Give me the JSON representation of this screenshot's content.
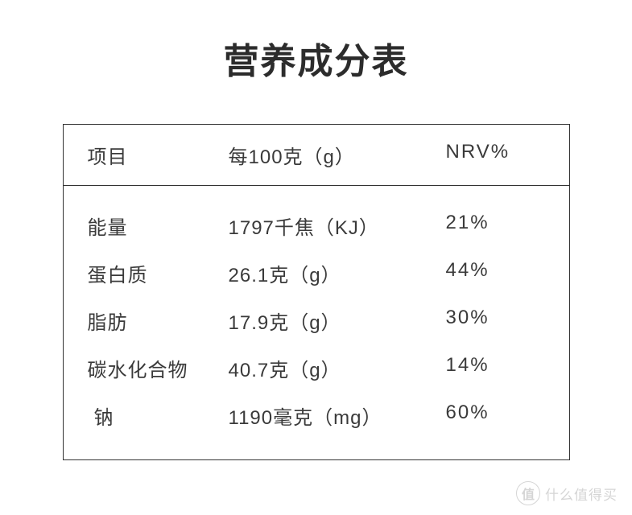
{
  "title": "营养成分表",
  "table": {
    "headers": {
      "item": "项目",
      "per100g": "每100克（g）",
      "nrv": "NRV%"
    },
    "rows": [
      {
        "name": "能量",
        "value": "1797千焦（KJ）",
        "nrv": "21%"
      },
      {
        "name": "蛋白质",
        "value": "26.1克（g）",
        "nrv": "44%"
      },
      {
        "name": "脂肪",
        "value": "17.9克（g）",
        "nrv": "30%"
      },
      {
        "name": "碳水化合物",
        "value": "40.7克（g）",
        "nrv": "14%"
      },
      {
        "name": "钠",
        "value": "1190毫克（mg）",
        "nrv": "60%",
        "indented": true
      }
    ]
  },
  "watermark": {
    "icon": "值",
    "text": "什么值得买"
  },
  "styles": {
    "background_color": "#ffffff",
    "title_color": "#2c2c2c",
    "title_fontsize": 44,
    "border_color": "#333333",
    "text_color": "#3a3a3a",
    "cell_fontsize": 24
  }
}
